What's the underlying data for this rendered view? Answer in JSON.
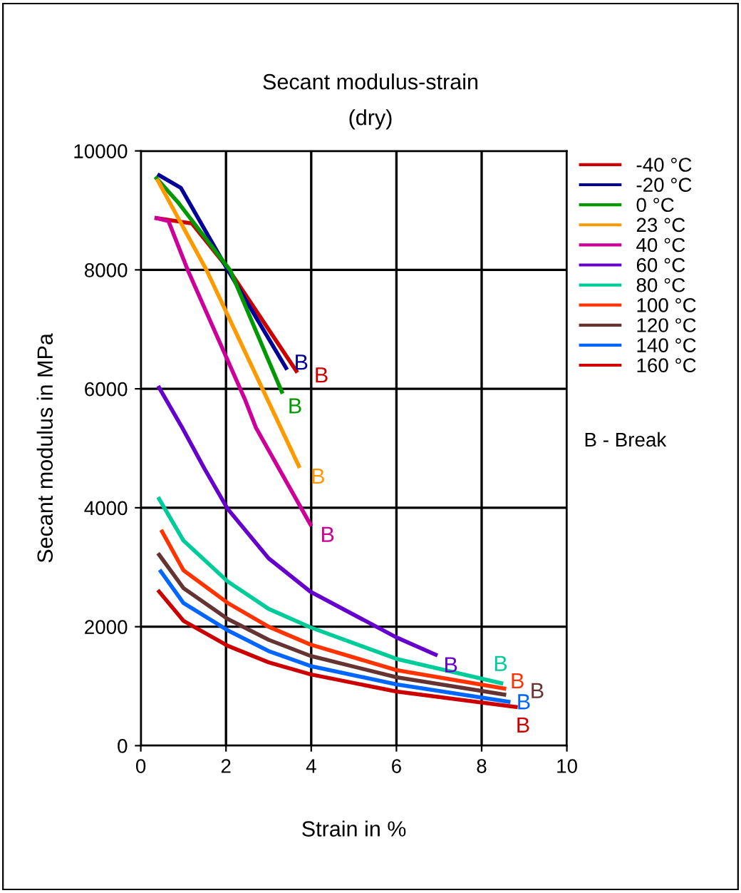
{
  "chart_data": {
    "type": "line",
    "title": "Secant modulus-strain",
    "subtitle": "(dry)",
    "xlabel": "Strain in %",
    "ylabel": "Secant modulus in MPa",
    "xlim": [
      0,
      10
    ],
    "ylim": [
      0,
      10000
    ],
    "xticks": [
      0,
      2,
      4,
      6,
      8,
      10
    ],
    "yticks": [
      0,
      2000,
      4000,
      6000,
      8000,
      10000
    ],
    "grid": true,
    "legend": "top right",
    "marker": "none",
    "line_style": "solid",
    "series": [
      {
        "name": "-40 °C",
        "color": "#cc0000",
        "x": [
          0.37,
          1.2,
          2.04,
          3.65
        ],
        "values": [
          8870,
          8780,
          8030,
          6300
        ]
      },
      {
        "name": "-20 °C",
        "color": "#000099",
        "x": [
          0.43,
          0.94,
          2.0,
          3.41
        ],
        "values": [
          9590,
          9380,
          8050,
          6350
        ]
      },
      {
        "name": "0 °C",
        "color": "#009900",
        "x": [
          0.37,
          0.87,
          2.1,
          3.31
        ],
        "values": [
          9540,
          9140,
          7990,
          5950
        ]
      },
      {
        "name": "23 °C",
        "color": "#ff9900",
        "x": [
          0.4,
          1.54,
          3.71
        ],
        "values": [
          9500,
          8000,
          4700
        ]
      },
      {
        "name": "40 °C",
        "color": "#cc0099",
        "x": [
          0.37,
          0.65,
          1.1,
          2.44,
          2.7,
          3.98
        ],
        "values": [
          8870,
          8820,
          8000,
          5830,
          5350,
          3720
        ]
      },
      {
        "name": "60 °C",
        "color": "#6600cc",
        "x": [
          0.43,
          0.97,
          1.5,
          2.04,
          3.0,
          3.98,
          6.0,
          6.92
        ],
        "values": [
          6020,
          5350,
          4650,
          3980,
          3150,
          2590,
          1820,
          1530
        ]
      },
      {
        "name": "80 °C",
        "color": "#00cc99",
        "x": [
          0.43,
          1.0,
          2.04,
          3.0,
          3.98,
          6.0,
          8.46
        ],
        "values": [
          4150,
          3450,
          2760,
          2300,
          1990,
          1460,
          1050
        ]
      },
      {
        "name": "100 °C",
        "color": "#ff3300",
        "x": [
          0.5,
          1.0,
          2.04,
          3.0,
          3.98,
          6.0,
          8.53
        ],
        "values": [
          3600,
          2950,
          2400,
          2000,
          1700,
          1270,
          960
        ]
      },
      {
        "name": "120 °C",
        "color": "#663333",
        "x": [
          0.43,
          1.0,
          2.04,
          3.0,
          3.98,
          6.0,
          8.53
        ],
        "values": [
          3210,
          2650,
          2130,
          1780,
          1510,
          1150,
          860
        ]
      },
      {
        "name": "140 °C",
        "color": "#0066ff",
        "x": [
          0.47,
          1.0,
          2.04,
          3.0,
          3.98,
          6.0,
          8.63
        ],
        "values": [
          2930,
          2400,
          1940,
          1590,
          1340,
          1030,
          740
        ]
      },
      {
        "name": "160 °C",
        "color": "#cc0000",
        "x": [
          0.43,
          1.0,
          2.04,
          3.0,
          3.98,
          6.0,
          8.8
        ],
        "values": [
          2590,
          2100,
          1680,
          1400,
          1200,
          910,
          650
        ]
      }
    ],
    "annotations": [
      {
        "text": "B",
        "x": 3.65,
        "y": 6300
      },
      {
        "text": "B",
        "x": 3.41,
        "y": 6350
      },
      {
        "text": "B",
        "x": 3.31,
        "y": 5950
      },
      {
        "text": "B",
        "x": 3.71,
        "y": 4700
      },
      {
        "text": "B",
        "x": 3.98,
        "y": 3720
      },
      {
        "text": "B",
        "x": 6.92,
        "y": 1530
      },
      {
        "text": "B",
        "x": 8.46,
        "y": 1050
      },
      {
        "text": "B",
        "x": 8.53,
        "y": 960
      },
      {
        "text": "B",
        "x": 8.53,
        "y": 860
      },
      {
        "text": "B",
        "x": 8.63,
        "y": 740
      },
      {
        "text": "B",
        "x": 8.8,
        "y": 650
      },
      "B - Break"
    ]
  }
}
